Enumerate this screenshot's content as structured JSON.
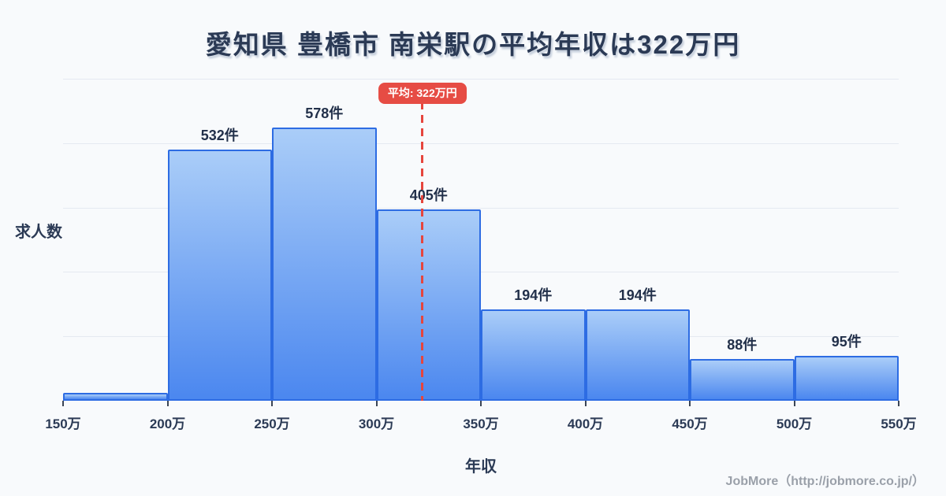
{
  "page": {
    "footer_credit": "JobMore（http://jobmore.co.jp/）"
  },
  "chart_data": {
    "type": "bar",
    "title": "愛知県 豊橋市 南栄駅の平均年収は322万円",
    "xlabel": "年収",
    "ylabel": "求人数",
    "x_range": [
      150,
      550
    ],
    "x_ticks": [
      "150万",
      "200万",
      "250万",
      "300万",
      "350万",
      "400万",
      "450万",
      "500万",
      "550万"
    ],
    "ylim": [
      0,
      681
    ],
    "grid_divisions": 5,
    "grid": true,
    "legend": false,
    "bins": [
      {
        "range": [
          150,
          200
        ],
        "value": 16,
        "label": ""
      },
      {
        "range": [
          200,
          250
        ],
        "value": 532,
        "label": "532件"
      },
      {
        "range": [
          250,
          300
        ],
        "value": 578,
        "label": "578件"
      },
      {
        "range": [
          300,
          350
        ],
        "value": 405,
        "label": "405件"
      },
      {
        "range": [
          350,
          400
        ],
        "value": 194,
        "label": "194件"
      },
      {
        "range": [
          400,
          450
        ],
        "value": 194,
        "label": "194件"
      },
      {
        "range": [
          450,
          500
        ],
        "value": 88,
        "label": "88件"
      },
      {
        "range": [
          500,
          550
        ],
        "value": 95,
        "label": "95件"
      }
    ],
    "average_line": {
      "value": 322,
      "label": "平均: 322万円"
    },
    "colors": {
      "background": "#f8fafc",
      "bar_fill_top": "#aacdf8",
      "bar_fill_bottom": "#4b87ef",
      "bar_border": "#2d6ce3",
      "gridline": "#e5e9f1",
      "text": "#2b3a55",
      "average_red": "#e64c44",
      "badge_text": "#ffffff",
      "footer_text": "#9aa0a9"
    }
  }
}
